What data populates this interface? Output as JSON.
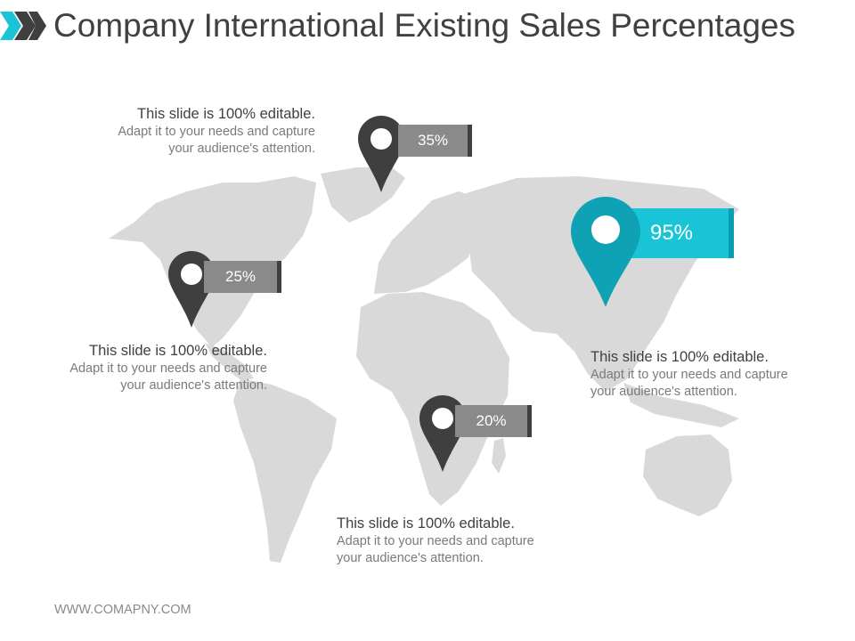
{
  "slide": {
    "title": "Company International Existing Sales Percentages",
    "footer": "WWW.COMAPNY.COM"
  },
  "markers": [
    {
      "region": "north-america",
      "value": "25%"
    },
    {
      "region": "europe-north",
      "value": "35%"
    },
    {
      "region": "africa",
      "value": "20%"
    },
    {
      "region": "asia",
      "value": "95%"
    }
  ],
  "callouts": [
    {
      "heading": "This slide is 100% editable.",
      "line1": "Adapt it to your needs and capture",
      "line2": "your audience's attention."
    },
    {
      "heading": "This slide is 100% editable.",
      "line1": "Adapt it to your needs and capture",
      "line2": "your audience's attention."
    },
    {
      "heading": "This slide is 100% editable.",
      "line1": "Adapt it to your needs and capture",
      "line2": "your audience's attention."
    },
    {
      "heading": "This slide is 100% editable.",
      "line1": "Adapt it to your needs and capture",
      "line2": "your audience's attention."
    }
  ],
  "colors": {
    "accent": "#19c4d6",
    "pin_dark": "#3f3f3f",
    "tag_gray": "#8a8a8a",
    "map": "#d9d9d9"
  }
}
